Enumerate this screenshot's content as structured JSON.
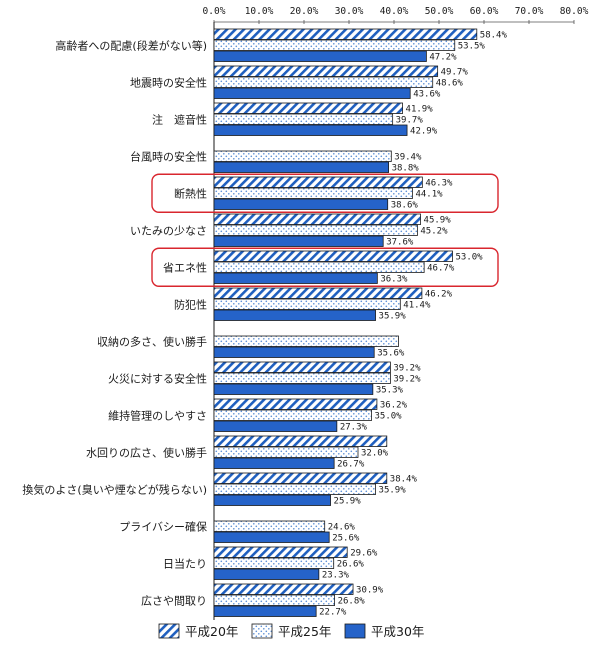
{
  "chart_data": {
    "type": "bar",
    "orientation": "horizontal",
    "title": "",
    "xlabel": "",
    "ylabel": "",
    "xlim": [
      0,
      80
    ],
    "x_ticks": [
      "0.0%",
      "10.0%",
      "20.0%",
      "30.0%",
      "40.0%",
      "50.0%",
      "60.0%",
      "70.0%",
      "80.0%"
    ],
    "unit": "%",
    "grid": false,
    "legend_position": "bottom",
    "categories": [
      "高齢者への配慮(段差がない等)",
      "地震時の安全性",
      "注　遮音性",
      "台風時の安全性",
      "断熱性",
      "いたみの少なさ",
      "省エネ性",
      "防犯性",
      "収納の多さ、使い勝手",
      "火災に対する安全性",
      "維持管理のしやすさ",
      "水回りの広さ、使い勝手",
      "換気のよさ(臭いや煙などが残らない)",
      "プライバシー確保",
      "日当たり",
      "広さや間取り"
    ],
    "highlighted_categories": [
      "断熱性",
      "省エネ性"
    ],
    "series": [
      {
        "name": "平成20年",
        "pattern": "diagonal-hatch",
        "color": "#1f5fbf",
        "values": [
          58.4,
          49.7,
          41.9,
          null,
          46.3,
          45.9,
          53.0,
          46.2,
          null,
          39.2,
          36.2,
          38.4,
          38.4,
          null,
          29.6,
          30.9
        ],
        "labels": [
          "58.4%",
          "49.7%",
          "41.9%",
          "",
          "46.3%",
          "45.9%",
          "53.0%",
          "46.2%",
          "",
          "39.2%",
          "36.2%",
          "",
          "38.4%",
          "",
          "29.6%",
          "30.9%"
        ]
      },
      {
        "name": "平成25年",
        "pattern": "dots",
        "color": "#5b8fd6",
        "values": [
          53.5,
          48.6,
          39.7,
          39.4,
          44.1,
          45.2,
          46.7,
          41.4,
          41.0,
          39.2,
          35.0,
          32.0,
          35.9,
          24.6,
          26.6,
          26.8
        ],
        "labels": [
          "53.5%",
          "48.6%",
          "39.7%",
          "39.4%",
          "44.1%",
          "45.2%",
          "46.7%",
          "41.4%",
          "",
          "39.2%",
          "35.0%",
          "32.0%",
          "35.9%",
          "24.6%",
          "26.6%",
          "26.8%"
        ]
      },
      {
        "name": "平成30年",
        "pattern": "solid",
        "color": "#2563c9",
        "values": [
          47.2,
          43.6,
          42.9,
          38.8,
          38.6,
          37.6,
          36.3,
          35.9,
          35.6,
          35.3,
          27.3,
          26.7,
          25.9,
          25.6,
          23.3,
          22.7
        ],
        "labels": [
          "47.2%",
          "43.6%",
          "42.9%",
          "38.8%",
          "38.6%",
          "37.6%",
          "36.3%",
          "35.9%",
          "35.6%",
          "35.3%",
          "27.3%",
          "26.7%",
          "25.9%",
          "25.6%",
          "23.3%",
          "22.7%"
        ]
      }
    ]
  },
  "legend": {
    "items": [
      {
        "label": "平成20年"
      },
      {
        "label": "平成25年"
      },
      {
        "label": "平成30年"
      }
    ]
  }
}
